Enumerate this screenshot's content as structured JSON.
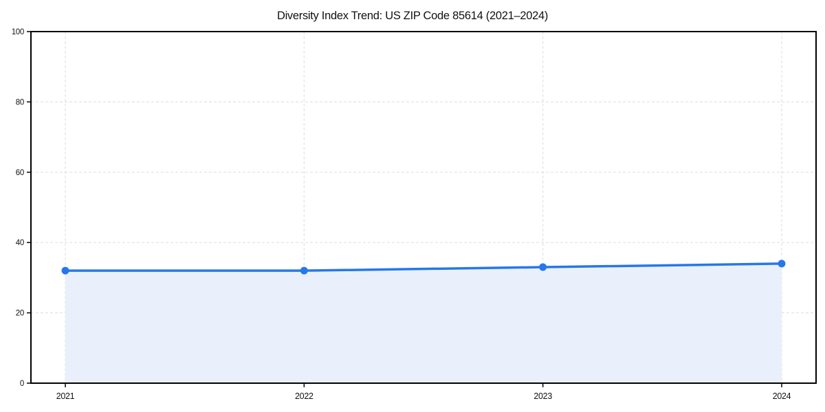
{
  "chart_data": {
    "type": "area",
    "title": "Diversity Index Trend: US ZIP Code 85614 (2021–2024)",
    "categories": [
      "2021",
      "2022",
      "2023",
      "2024"
    ],
    "series": [
      {
        "name": "Diversity Index",
        "values": [
          32,
          32,
          33,
          34
        ]
      }
    ],
    "xlabel": "",
    "ylabel": "",
    "ylim": [
      0,
      100
    ],
    "yticks": [
      0,
      20,
      40,
      60,
      80,
      100
    ],
    "grid": true,
    "grid_style": "dashed",
    "legend_position": "none",
    "colors": {
      "line": "#2677EB",
      "marker": "#2677EB",
      "fill": "#E9F0FC",
      "grid": "#E2E2E2",
      "spine": "#000000",
      "text": "#111111",
      "background": "#FFFFFF"
    }
  }
}
